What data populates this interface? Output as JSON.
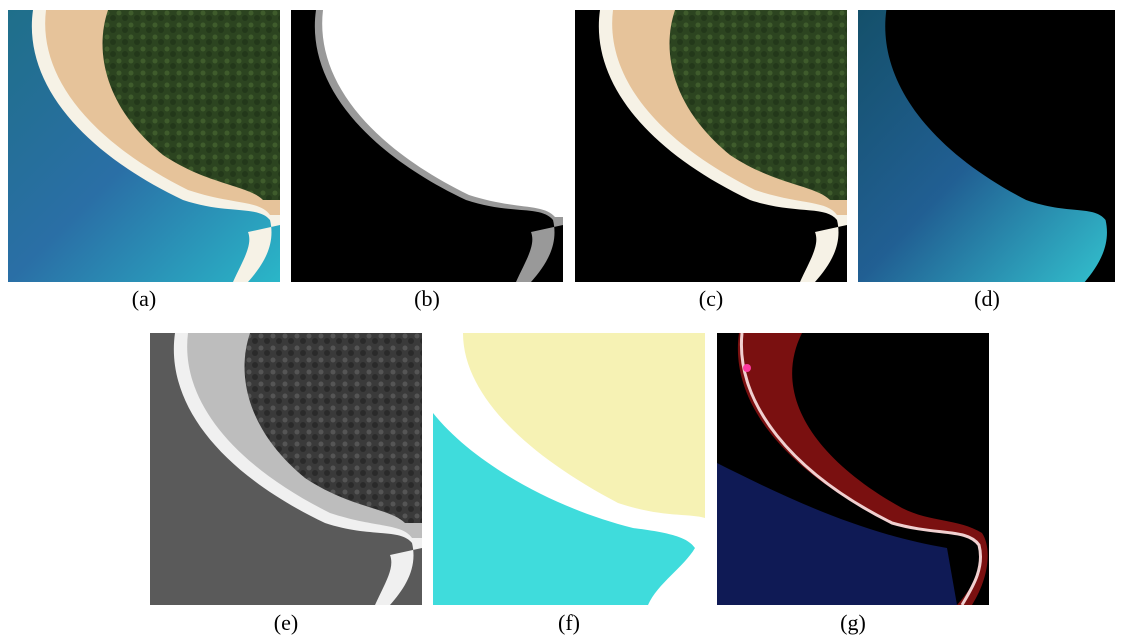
{
  "panels": [
    {
      "label": "(a)"
    },
    {
      "label": "(b)"
    },
    {
      "label": "(c)"
    },
    {
      "label": "(d)"
    },
    {
      "label": "(e)"
    },
    {
      "label": "(f)"
    },
    {
      "label": "(g)"
    }
  ]
}
